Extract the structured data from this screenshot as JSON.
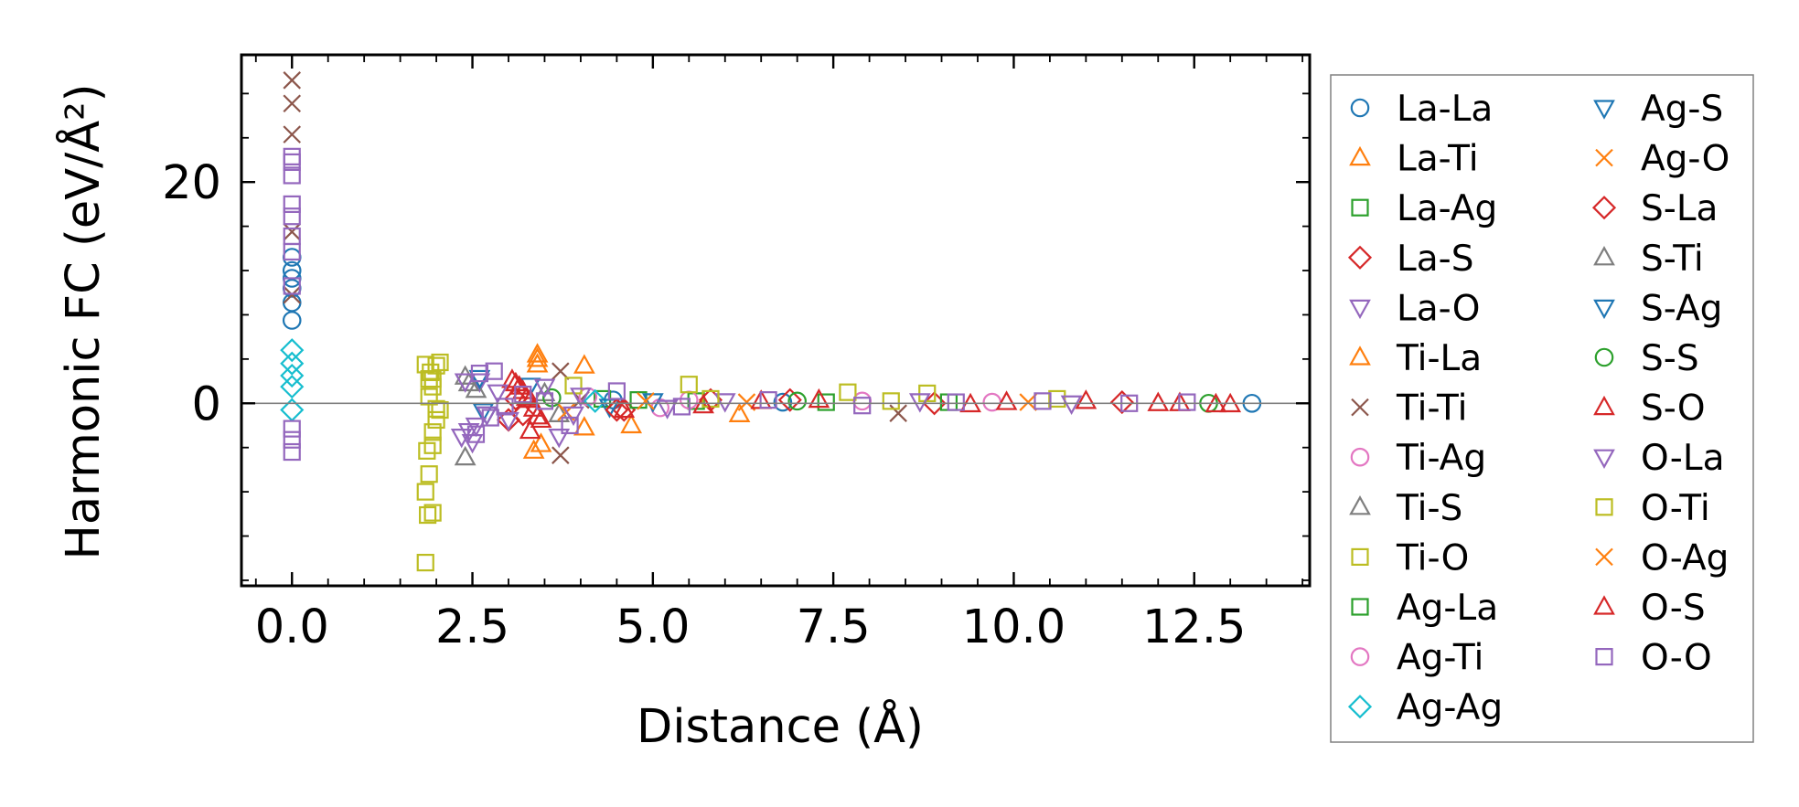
{
  "chart_data": {
    "type": "scatter",
    "title": "",
    "xlabel": "Distance (Å)",
    "ylabel": "Harmonic FC (eV/Å²)",
    "xlim": [
      -0.7,
      14.1
    ],
    "ylim": [
      -16.5,
      31.5
    ],
    "xticks": [
      0.0,
      2.5,
      5.0,
      7.5,
      10.0,
      12.5
    ],
    "xtick_labels": [
      "0.0",
      "2.5",
      "5.0",
      "7.5",
      "10.0",
      "12.5"
    ],
    "yticks": [
      0,
      20
    ],
    "ytick_labels": [
      "0",
      "20"
    ],
    "hline": 0,
    "legend_position": "right",
    "legend_columns": 2,
    "series": [
      {
        "name": "La-La",
        "marker": "circle",
        "color": "#1f77b4",
        "x": [
          0,
          0,
          0,
          0,
          0,
          0,
          4.45,
          6.8,
          13.3
        ],
        "y": [
          13.2,
          12.0,
          11.3,
          10.4,
          9.1,
          7.5,
          0.3,
          0.1,
          0.0
        ]
      },
      {
        "name": "La-Ti",
        "marker": "triangle-up",
        "color": "#ff7f0e",
        "x": [
          3.4,
          3.4,
          3.35,
          3.45,
          4.05,
          4.7,
          6.2
        ],
        "y": [
          4.4,
          3.5,
          -4.3,
          -3.7,
          3.4,
          -2.0,
          -1.0
        ]
      },
      {
        "name": "La-Ag",
        "marker": "square",
        "color": "#2ca02c",
        "x": [
          4.3,
          5.6,
          7.4
        ],
        "y": [
          0.4,
          0.2,
          0.1
        ]
      },
      {
        "name": "La-S",
        "marker": "diamond",
        "color": "#d62728",
        "x": [
          3.0,
          3.1,
          4.6,
          5.8,
          8.9
        ],
        "y": [
          -1.5,
          0.4,
          -0.6,
          0.3,
          0.0
        ]
      },
      {
        "name": "La-O",
        "marker": "triangle-down",
        "color": "#9467bd",
        "x": [
          2.45,
          2.5,
          2.6,
          3.7,
          6.0
        ],
        "y": [
          -2.5,
          -3.5,
          2.0,
          -3.0,
          0.2
        ]
      },
      {
        "name": "Ti-La",
        "marker": "triangle-up",
        "color": "#ff7f0e",
        "x": [
          3.4,
          4.05
        ],
        "y": [
          4.0,
          -2.2
        ]
      },
      {
        "name": "Ti-Ti",
        "marker": "x",
        "color": "#8c564b",
        "x": [
          0,
          0,
          0,
          0,
          0,
          3.72,
          3.72,
          4.0,
          8.4
        ],
        "y": [
          29.2,
          27.1,
          24.3,
          15.5,
          9.8,
          2.9,
          -4.7,
          0.3,
          -0.9
        ]
      },
      {
        "name": "Ti-Ag",
        "marker": "circle",
        "color": "#e377c2",
        "x": [
          4.1,
          5.5,
          7.9
        ],
        "y": [
          0.6,
          0.3,
          0.2
        ]
      },
      {
        "name": "Ti-S",
        "marker": "triangle-up",
        "color": "#7f7f7f",
        "x": [
          2.4,
          2.4,
          2.55,
          3.7
        ],
        "y": [
          -4.9,
          2.4,
          1.2,
          -1.0
        ]
      },
      {
        "name": "Ti-O",
        "marker": "square",
        "color": "#bcbd22",
        "x": [
          1.85,
          1.88,
          1.85,
          1.9,
          1.87,
          1.95,
          1.95,
          2.0,
          2.05,
          1.9,
          1.95,
          1.92,
          2.0,
          2.05,
          1.85,
          1.95,
          3.9,
          5.5,
          7.7,
          8.8,
          10.6
        ],
        "y": [
          -14.4,
          -10.1,
          -8.0,
          -6.4,
          -4.3,
          -3.8,
          -2.6,
          -1.5,
          -0.6,
          0.6,
          1.5,
          2.8,
          3.4,
          3.7,
          3.5,
          2.2,
          1.6,
          1.7,
          1.0,
          0.9,
          0.4
        ]
      },
      {
        "name": "Ag-La",
        "marker": "square",
        "color": "#2ca02c",
        "x": [
          4.8,
          9.1
        ],
        "y": [
          0.3,
          0.1
        ]
      },
      {
        "name": "Ag-Ti",
        "marker": "circle",
        "color": "#e377c2",
        "x": [
          5.1,
          9.7
        ],
        "y": [
          -0.4,
          0.1
        ]
      },
      {
        "name": "Ag-Ag",
        "marker": "diamond",
        "color": "#17becf",
        "x": [
          0,
          0,
          0,
          0,
          0,
          4.2
        ],
        "y": [
          4.8,
          3.6,
          2.5,
          1.5,
          -0.6,
          0.2
        ]
      },
      {
        "name": "Ag-S",
        "marker": "triangle-down",
        "color": "#1f77b4",
        "x": [
          2.6,
          2.7,
          3.3,
          4.4
        ],
        "y": [
          2.3,
          -1.0,
          1.6,
          -0.3
        ]
      },
      {
        "name": "Ag-O",
        "marker": "x",
        "color": "#ff7f0e",
        "x": [
          3.8,
          6.3
        ],
        "y": [
          -0.8,
          0.1
        ]
      },
      {
        "name": "S-La",
        "marker": "diamond",
        "color": "#d62728",
        "x": [
          3.2,
          4.5,
          6.9,
          11.5
        ],
        "y": [
          -1.0,
          -0.6,
          0.3,
          0.1
        ]
      },
      {
        "name": "S-Ti",
        "marker": "triangle-up",
        "color": "#7f7f7f",
        "x": [
          2.45,
          3.5
        ],
        "y": [
          1.8,
          0.9
        ]
      },
      {
        "name": "S-Ag",
        "marker": "triangle-down",
        "color": "#1f77b4",
        "x": [
          2.65,
          5.0
        ],
        "y": [
          -0.7,
          0.2
        ]
      },
      {
        "name": "S-S",
        "marker": "circle",
        "color": "#2ca02c",
        "x": [
          3.6,
          7.0,
          12.7
        ],
        "y": [
          0.5,
          0.2,
          0.0
        ]
      },
      {
        "name": "S-O",
        "marker": "triangle-up",
        "color": "#d62728",
        "x": [
          3.05,
          3.15,
          3.25,
          3.35,
          3.45,
          3.3,
          3.2,
          4.6,
          6.5,
          9.9,
          12.3,
          13.0
        ],
        "y": [
          2.1,
          1.5,
          0.5,
          -0.5,
          -1.5,
          -2.5,
          1.1,
          -0.6,
          0.2,
          0.1,
          0.0,
          -0.1
        ]
      },
      {
        "name": "O-La",
        "marker": "triangle-down",
        "color": "#9467bd",
        "x": [
          2.35,
          2.4,
          2.55,
          2.7,
          2.85,
          3.0,
          3.5,
          3.9,
          4.0,
          5.2,
          8.7,
          10.8
        ],
        "y": [
          -3.0,
          2.0,
          -2.0,
          -1.0,
          1.0,
          -1.5,
          1.5,
          -1.0,
          0.7,
          -0.4,
          0.2,
          0.0
        ]
      },
      {
        "name": "O-Ti",
        "marker": "square",
        "color": "#bcbd22",
        "x": [
          1.95,
          1.9,
          2.0,
          5.8,
          8.3
        ],
        "y": [
          -9.9,
          2.2,
          -0.5,
          0.4,
          0.2
        ]
      },
      {
        "name": "O-Ag",
        "marker": "x",
        "color": "#ff7f0e",
        "x": [
          4.9,
          10.2
        ],
        "y": [
          0.2,
          0.1
        ]
      },
      {
        "name": "O-S",
        "marker": "triangle-up",
        "color": "#d62728",
        "x": [
          3.1,
          3.3,
          3.4,
          5.7,
          7.3,
          9.4,
          11.0,
          12.0,
          12.8
        ],
        "y": [
          1.8,
          0.3,
          -1.2,
          -0.2,
          0.3,
          -0.1,
          0.2,
          0.0,
          -0.1
        ]
      },
      {
        "name": "O-O",
        "marker": "square",
        "color": "#9467bd",
        "x": [
          0,
          0,
          0,
          0,
          0,
          0,
          0,
          0,
          0,
          0,
          0,
          2.8,
          2.6,
          2.55,
          2.75,
          2.95,
          3.2,
          3.5,
          3.85,
          4.5,
          5.4,
          6.6,
          7.9,
          9.2,
          10.4,
          11.6,
          12.4
        ],
        "y": [
          22.3,
          21.8,
          20.6,
          18.0,
          16.9,
          15.1,
          13.7,
          10.6,
          -2.3,
          -3.3,
          -4.4,
          2.9,
          2.7,
          -2.8,
          -1.3,
          -0.3,
          0.8,
          0.2,
          -2.0,
          1.1,
          -0.3,
          0.3,
          -0.2,
          0.1,
          0.2,
          0.0,
          0.1
        ]
      }
    ]
  }
}
